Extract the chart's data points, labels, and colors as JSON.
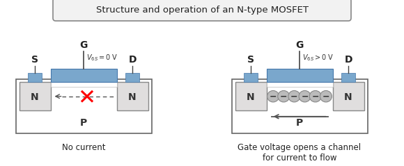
{
  "title": "Structure and operation of an N-type MOSFET",
  "bg_color": "#ffffff",
  "body_color": "#eeeeee",
  "n_color": "#e0dede",
  "gate_color": "#7aa7cc",
  "contact_color": "#7aa7cc",
  "left_vgs": "V",
  "left_vgs_sub": "6S",
  "left_vgs_rest": "=0 V",
  "right_vgs": "V",
  "right_vgs_sub": "6S",
  "right_vgs_rest": ">0 V",
  "caption_left": "No current",
  "caption_right": "Gate voltage opens a channel\nfor current to flow"
}
